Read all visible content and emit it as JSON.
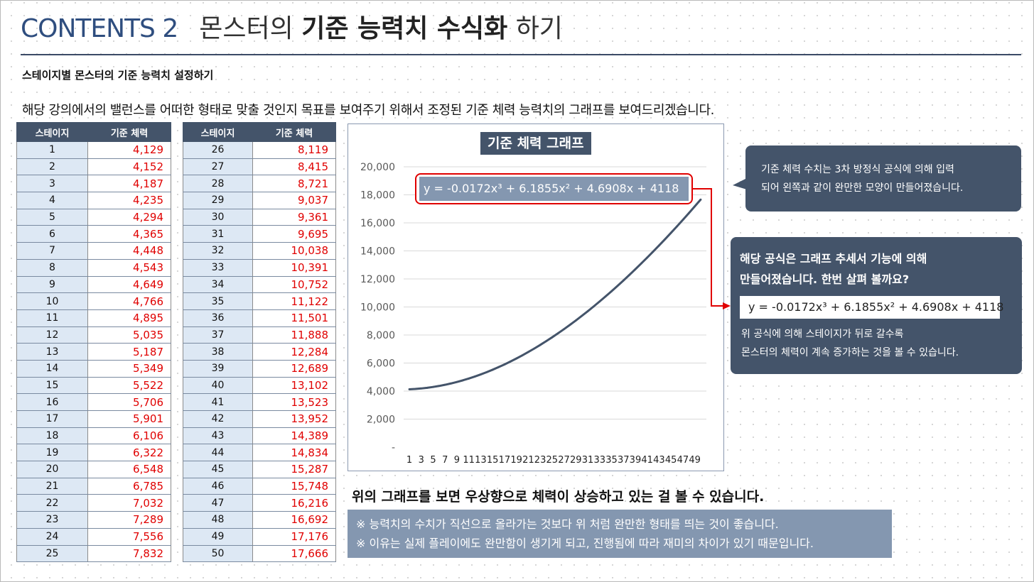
{
  "header": {
    "contents_label": "CONTENTS 2",
    "title_part1": "몬스터의",
    "title_bold": "기준 능력치 수식화",
    "title_part2": "하기"
  },
  "subtitle": "스테이지별 몬스터의 기준 능력치 설정하기",
  "intro": "해당 강의에서의 밸런스를 어떠한 형태로 맞출 것인지 목표를 보여주기 위해서 조정된 기준 체력 능력치의 그래프를 보여드리겠습니다.",
  "table": {
    "col_stage": "스테이지",
    "col_hp": "기준 체력",
    "rows_left": [
      [
        "1",
        "4,129"
      ],
      [
        "2",
        "4,152"
      ],
      [
        "3",
        "4,187"
      ],
      [
        "4",
        "4,235"
      ],
      [
        "5",
        "4,294"
      ],
      [
        "6",
        "4,365"
      ],
      [
        "7",
        "4,448"
      ],
      [
        "8",
        "4,543"
      ],
      [
        "9",
        "4,649"
      ],
      [
        "10",
        "4,766"
      ],
      [
        "11",
        "4,895"
      ],
      [
        "12",
        "5,035"
      ],
      [
        "13",
        "5,187"
      ],
      [
        "14",
        "5,349"
      ],
      [
        "15",
        "5,522"
      ],
      [
        "16",
        "5,706"
      ],
      [
        "17",
        "5,901"
      ],
      [
        "18",
        "6,106"
      ],
      [
        "19",
        "6,322"
      ],
      [
        "20",
        "6,548"
      ],
      [
        "21",
        "6,785"
      ],
      [
        "22",
        "7,032"
      ],
      [
        "23",
        "7,289"
      ],
      [
        "24",
        "7,556"
      ],
      [
        "25",
        "7,832"
      ]
    ],
    "rows_right": [
      [
        "26",
        "8,119"
      ],
      [
        "27",
        "8,415"
      ],
      [
        "28",
        "8,721"
      ],
      [
        "29",
        "9,037"
      ],
      [
        "30",
        "9,361"
      ],
      [
        "31",
        "9,695"
      ],
      [
        "32",
        "10,038"
      ],
      [
        "33",
        "10,391"
      ],
      [
        "34",
        "10,752"
      ],
      [
        "35",
        "11,122"
      ],
      [
        "36",
        "11,501"
      ],
      [
        "37",
        "11,888"
      ],
      [
        "38",
        "12,284"
      ],
      [
        "39",
        "12,689"
      ],
      [
        "40",
        "13,102"
      ],
      [
        "41",
        "13,523"
      ],
      [
        "42",
        "13,952"
      ],
      [
        "43",
        "14,389"
      ],
      [
        "44",
        "14,834"
      ],
      [
        "45",
        "15,287"
      ],
      [
        "46",
        "15,748"
      ],
      [
        "47",
        "16,216"
      ],
      [
        "48",
        "16,692"
      ],
      [
        "49",
        "17,176"
      ],
      [
        "50",
        "17,666"
      ]
    ]
  },
  "chart_data": {
    "type": "line",
    "title": "기준 체력 그래프",
    "equation": "y = -0.0172x³ + 6.1855x² + 4.6908x + 4118",
    "x": [
      1,
      2,
      3,
      4,
      5,
      6,
      7,
      8,
      9,
      10,
      11,
      12,
      13,
      14,
      15,
      16,
      17,
      18,
      19,
      20,
      21,
      22,
      23,
      24,
      25,
      26,
      27,
      28,
      29,
      30,
      31,
      32,
      33,
      34,
      35,
      36,
      37,
      38,
      39,
      40,
      41,
      42,
      43,
      44,
      45,
      46,
      47,
      48,
      49,
      50
    ],
    "x_tick_labels": [
      "1",
      "3",
      "5",
      "7",
      "9",
      "11",
      "13",
      "15",
      "17",
      "19",
      "21",
      "23",
      "25",
      "27",
      "29",
      "31",
      "33",
      "35",
      "37",
      "39",
      "41",
      "43",
      "45",
      "47",
      "49"
    ],
    "values": [
      4129,
      4152,
      4187,
      4235,
      4294,
      4365,
      4448,
      4543,
      4649,
      4766,
      4895,
      5035,
      5187,
      5349,
      5522,
      5706,
      5901,
      6106,
      6322,
      6548,
      6785,
      7032,
      7289,
      7556,
      7832,
      8119,
      8415,
      8721,
      9037,
      9361,
      9695,
      10038,
      10391,
      10752,
      11122,
      11501,
      11888,
      12284,
      12689,
      13102,
      13523,
      13952,
      14389,
      14834,
      15287,
      15748,
      16216,
      16692,
      17176,
      17666
    ],
    "y_tick_labels": [
      "-",
      "2,000",
      "4,000",
      "6,000",
      "8,000",
      "10,000",
      "12,000",
      "14,000",
      "16,000",
      "18,000",
      "20,000"
    ],
    "ylim": [
      0,
      20000
    ],
    "grid": true,
    "line_color": "#44546a"
  },
  "notes": {
    "note1_line1": "기준 체력 수치는 3차 방정식 공식에 의해 입력",
    "note1_line2": "되어 왼쪽과 같이 완만한 모양이 만들어졌습니다.",
    "note2_line1": "해당 공식은 그래프 추세서 기능에 의해",
    "note2_line2": "만들어졌습니다. 한번 살펴 볼까요?",
    "note2_formula": "y = -0.0172x³ + 6.1855x² + 4.6908x + 4118",
    "note2_line3": "위 공식에 의해 스테이지가 뒤로 갈수록",
    "note2_line4": "몬스터의 체력이 계속 증가하는 것을 볼 수 있습니다."
  },
  "conclusion": "위의 그래프를 보면 우상향으로 체력이 상승하고 있는 걸 볼 수 있습니다.",
  "footnotes": {
    "line1": "※ 능력치의 수치가 직선으로 올라가는 것보다 위 처럼 완만한 형태를 띄는 것이 좋습니다.",
    "line2": "※ 이유는 실제 플레이에도 완만함이 생기게 되고, 진행됨에 따라 재미의 차이가 있기 때문입니다."
  },
  "colors": {
    "accent": "#44546a",
    "title_blue": "#2f4e7f",
    "highlight_red": "#e00000",
    "stage_cell_bg": "#dde8f4",
    "footnote_bg": "#8497b0"
  }
}
